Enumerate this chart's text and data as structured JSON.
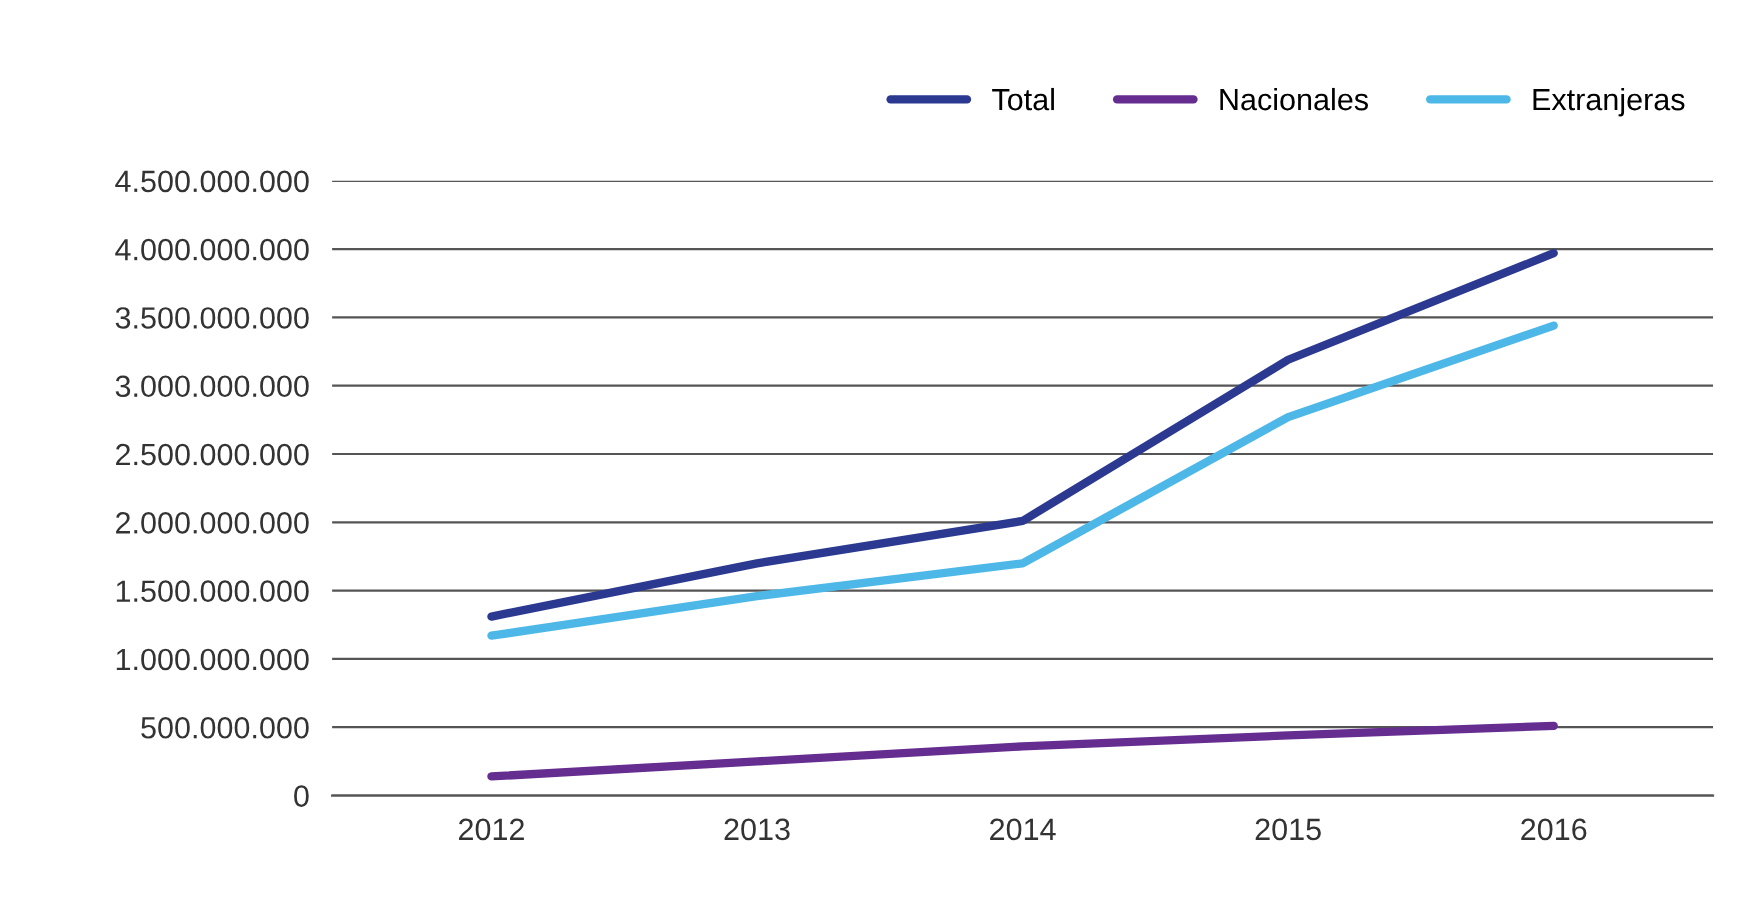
{
  "chart_data": {
    "type": "line",
    "categories": [
      "2012",
      "2013",
      "2014",
      "2015",
      "2016"
    ],
    "series": [
      {
        "name": "Total",
        "color": "#2b3990",
        "values": [
          1310000000,
          1700000000,
          2010000000,
          3190000000,
          3970000000
        ]
      },
      {
        "name": "Nacionales",
        "color": "#662d91",
        "values": [
          140000000,
          250000000,
          360000000,
          440000000,
          510000000
        ]
      },
      {
        "name": "Extranjeras",
        "color": "#4db8e8",
        "values": [
          1170000000,
          1460000000,
          1700000000,
          2770000000,
          3440000000
        ]
      }
    ],
    "ylim": [
      0,
      4500000000
    ],
    "yticks": [
      0,
      {
        "value": 500000000,
        "label": "500.000.000"
      },
      {
        "value": 1000000000,
        "label": "1.000.000.000"
      },
      {
        "value": 1500000000,
        "label": "1.500.000.000"
      },
      {
        "value": 2000000000,
        "label": "2.000.000.000"
      },
      {
        "value": 2500000000,
        "label": "2.500.000.000"
      },
      {
        "value": 3000000000,
        "label": "3.000.000.000"
      },
      {
        "value": 3500000000,
        "label": "3.500.000.000"
      },
      {
        "value": 4000000000,
        "label": "4.000.000.000"
      },
      {
        "value": 4500000000,
        "label": "4.500.000.000"
      }
    ],
    "grid": "y",
    "legend": "top right",
    "marker": "none",
    "line_style": "solid"
  }
}
